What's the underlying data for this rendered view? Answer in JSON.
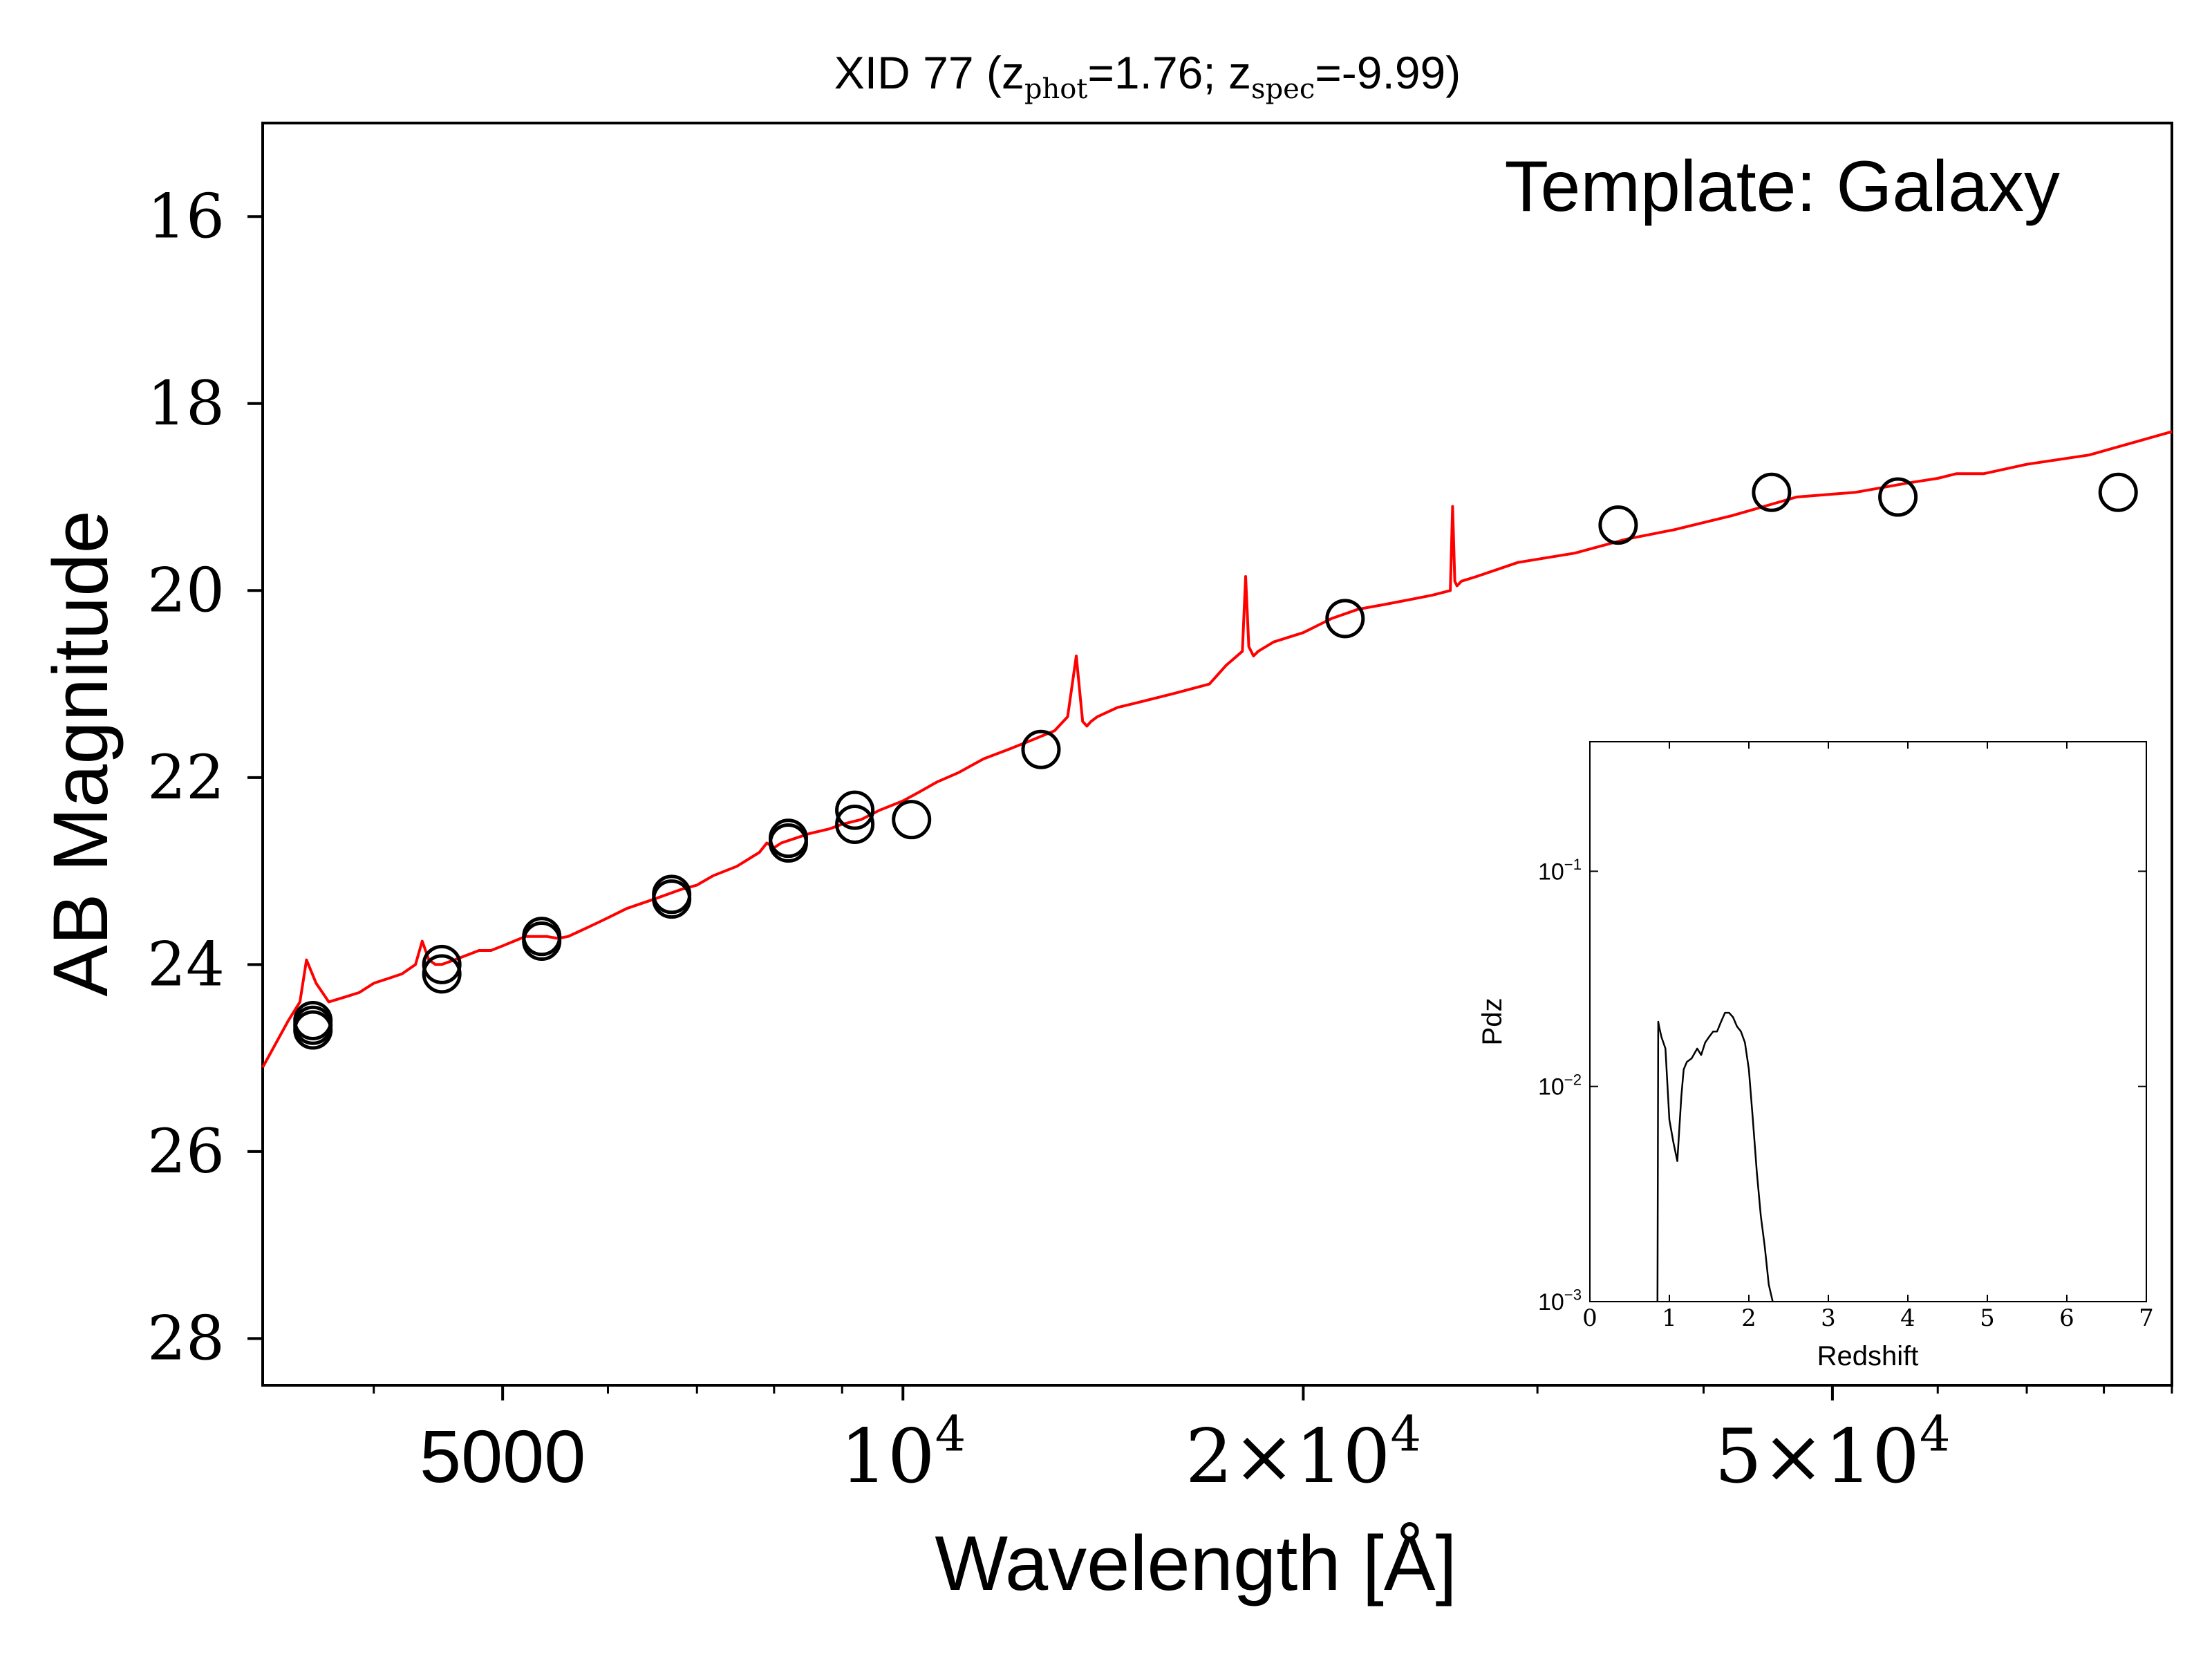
{
  "chart_data": [
    {
      "type": "line",
      "title": {
        "prefix": "XID 77 (z",
        "phot_sub": "phot",
        "phot_value": "=1.76; z",
        "spec_sub": "spec",
        "spec_value": "=-9.99)"
      },
      "annotation": "Template: Galaxy",
      "xlabel": "Wavelength [Å]",
      "ylabel": "AB Magnitude",
      "x_scale": "log",
      "xlim": [
        3300,
        90000
      ],
      "ylim": [
        28.5,
        15
      ],
      "y_inverted": true,
      "x_ticks": [
        {
          "value": 5000,
          "label": "5000"
        },
        {
          "value": 10000,
          "label_base": "10",
          "label_exp": "4"
        },
        {
          "value": 20000,
          "label_base": "2×10",
          "label_exp": "4"
        },
        {
          "value": 50000,
          "label_base": "5×10",
          "label_exp": "4"
        }
      ],
      "x_minor_ticks": [
        4000,
        6000,
        7000,
        8000,
        9000,
        30000,
        40000,
        60000,
        70000,
        80000,
        90000
      ],
      "y_ticks": [
        {
          "value": 16,
          "label": "16"
        },
        {
          "value": 18,
          "label": "18"
        },
        {
          "value": 20,
          "label": "20"
        },
        {
          "value": 22,
          "label": "22"
        },
        {
          "value": 24,
          "label": "24"
        },
        {
          "value": 26,
          "label": "26"
        },
        {
          "value": 28,
          "label": "28"
        }
      ],
      "series": [
        {
          "kind": "line",
          "color": "#ff0000",
          "x": [
            3300,
            3450,
            3520,
            3560,
            3620,
            3700,
            3800,
            3900,
            4000,
            4100,
            4200,
            4300,
            4350,
            4400,
            4450,
            4500,
            4600,
            4700,
            4800,
            4900,
            5000,
            5100,
            5200,
            5300,
            5400,
            5500,
            5600,
            5700,
            5800,
            5900,
            6000,
            6200,
            6500,
            6800,
            7000,
            7200,
            7500,
            7800,
            7900,
            8000,
            8100,
            8300,
            8500,
            8800,
            9000,
            9300,
            9600,
            10000,
            10300,
            10600,
            11000,
            11500,
            12000,
            12500,
            13000,
            13300,
            13500,
            13650,
            13750,
            13850,
            14000,
            14500,
            15000,
            16000,
            17000,
            17500,
            18000,
            18100,
            18200,
            18350,
            18500,
            19000,
            20000,
            21000,
            22000,
            23000,
            24000,
            25000,
            25800,
            25900,
            26000,
            26100,
            26300,
            27000,
            29000,
            32000,
            35000,
            38000,
            42000,
            47000,
            52000,
            57000,
            60000,
            62000,
            65000,
            70000,
            78000,
            85000,
            90000
          ],
          "y": [
            25.1,
            24.6,
            24.4,
            23.95,
            24.2,
            24.4,
            24.35,
            24.3,
            24.2,
            24.15,
            24.1,
            24.0,
            23.75,
            23.95,
            24.0,
            24.0,
            23.95,
            23.9,
            23.85,
            23.85,
            23.8,
            23.75,
            23.7,
            23.7,
            23.7,
            23.72,
            23.7,
            23.65,
            23.6,
            23.55,
            23.5,
            23.4,
            23.3,
            23.2,
            23.15,
            23.05,
            22.95,
            22.8,
            22.7,
            22.75,
            22.7,
            22.65,
            22.6,
            22.55,
            22.5,
            22.45,
            22.35,
            22.25,
            22.15,
            22.05,
            21.95,
            21.8,
            21.7,
            21.6,
            21.5,
            21.35,
            20.7,
            21.4,
            21.45,
            21.4,
            21.35,
            21.25,
            21.2,
            21.1,
            21.0,
            20.8,
            20.65,
            19.85,
            20.6,
            20.7,
            20.65,
            20.55,
            20.45,
            20.3,
            20.2,
            20.15,
            20.1,
            20.05,
            20.0,
            19.1,
            19.9,
            19.95,
            19.9,
            19.85,
            19.7,
            19.6,
            19.45,
            19.35,
            19.2,
            19.0,
            18.95,
            18.85,
            18.8,
            18.75,
            18.75,
            18.65,
            18.55,
            18.4,
            18.3
          ]
        },
        {
          "kind": "scatter",
          "marker": "open-circle",
          "color": "#000000",
          "x": [
            3600,
            3600,
            3600,
            4500,
            4500,
            5350,
            5350,
            6700,
            6700,
            8200,
            8200,
            9200,
            9200,
            10150,
            12700,
            21500,
            34500,
            45000,
            56000,
            82000
          ],
          "y": [
            24.7,
            24.65,
            24.6,
            24.1,
            24.0,
            23.75,
            23.7,
            23.3,
            23.25,
            22.7,
            22.65,
            22.5,
            22.35,
            22.45,
            21.7,
            20.3,
            19.3,
            18.95,
            19.0,
            18.95
          ]
        }
      ]
    },
    {
      "type": "line",
      "xlabel": "Redshift",
      "ylabel": "Pdz",
      "y_scale": "log",
      "xlim": [
        0,
        7
      ],
      "ylim": [
        0.001,
        0.4
      ],
      "x_ticks": [
        "0",
        "1",
        "2",
        "3",
        "4",
        "5",
        "6",
        "7"
      ],
      "y_ticks": [
        {
          "value": 0.1,
          "label_base": "10",
          "label_exp": "−1"
        },
        {
          "value": 0.01,
          "label_base": "10",
          "label_exp": "−2"
        },
        {
          "value": 0.001,
          "label_base": "10",
          "label_exp": "−3"
        }
      ],
      "series": [
        {
          "kind": "line",
          "color": "#000000",
          "x": [
            0.85,
            0.86,
            0.87,
            0.9,
            0.95,
            1.0,
            1.05,
            1.1,
            1.15,
            1.18,
            1.22,
            1.28,
            1.35,
            1.4,
            1.45,
            1.5,
            1.55,
            1.6,
            1.65,
            1.7,
            1.75,
            1.8,
            1.85,
            1.9,
            1.95,
            2.0,
            2.05,
            2.1,
            2.15,
            2.2,
            2.25,
            2.3
          ],
          "y": [
            0.001,
            0.02,
            0.019,
            0.017,
            0.015,
            0.007,
            0.0055,
            0.0045,
            0.009,
            0.012,
            0.013,
            0.0135,
            0.015,
            0.014,
            0.016,
            0.017,
            0.018,
            0.018,
            0.02,
            0.022,
            0.022,
            0.021,
            0.019,
            0.018,
            0.016,
            0.012,
            0.007,
            0.004,
            0.0025,
            0.0018,
            0.0012,
            0.001
          ]
        }
      ]
    }
  ]
}
